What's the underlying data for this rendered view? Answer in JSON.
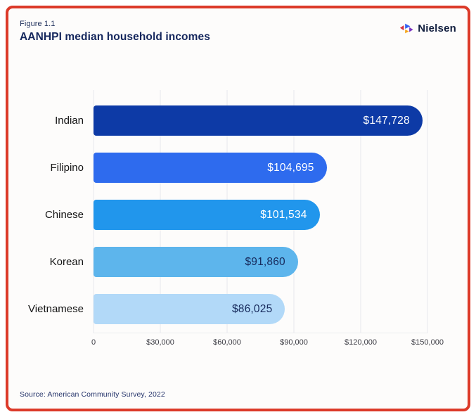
{
  "figure": {
    "label": "Figure 1.1",
    "title": "AANHPI median household incomes",
    "source": "Source: American Community Survey, 2022"
  },
  "brand": {
    "name": "Nielsen",
    "logo_icon": "nielsen-triangles-icon",
    "logo_colors": [
      "#d5323f",
      "#3360f2",
      "#f5a51c",
      "#7b35c1"
    ]
  },
  "chart_data": {
    "type": "bar",
    "orientation": "horizontal",
    "title": "AANHPI median household incomes",
    "xlabel": "",
    "ylabel": "",
    "categories": [
      "Indian",
      "Filipino",
      "Chinese",
      "Korean",
      "Vietnamese"
    ],
    "values": [
      147728,
      104695,
      101534,
      91860,
      86025
    ],
    "value_labels": [
      "$147,728",
      "$104,695",
      "$101,534",
      "$91,860",
      "$86,025"
    ],
    "bar_colors": [
      "#0d3aa6",
      "#2e6bee",
      "#2196ec",
      "#5db5ec",
      "#b2d9f8"
    ],
    "value_label_colors": [
      "#ffffff",
      "#ffffff",
      "#ffffff",
      "#16295b",
      "#16295b"
    ],
    "xlim": [
      0,
      150000
    ],
    "x_ticks": [
      "0",
      "$30,000",
      "$60,000",
      "$90,000",
      "$120,000",
      "$150,000"
    ],
    "grid": "vertical",
    "legend": "none"
  },
  "colors": {
    "frame_border": "#dc3a29",
    "card_background": "#fdfcfb",
    "title_text": "#14265c",
    "gridline": "#e8e8ec",
    "tick_text": "#3a3a42"
  }
}
